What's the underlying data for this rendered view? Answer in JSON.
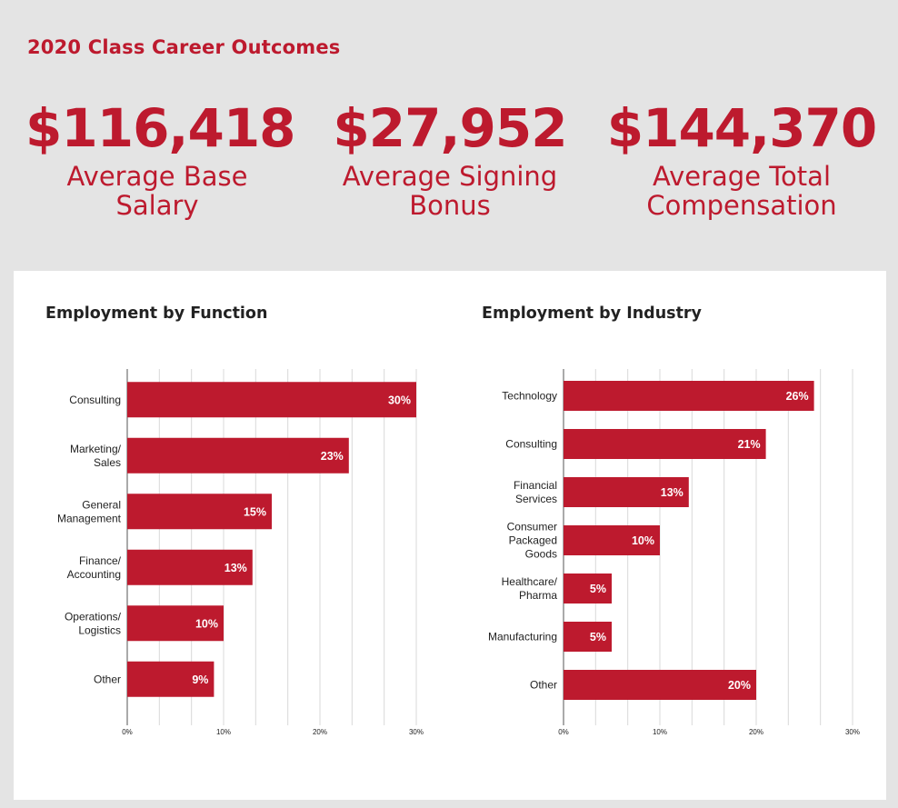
{
  "heading": "2020 Class Career Outcomes",
  "stats": [
    {
      "value": "$116,418",
      "label_line1": "Average Base",
      "label_line2": "Salary"
    },
    {
      "value": "$27,952",
      "label_line1": "Average Signing",
      "label_line2": "Bonus"
    },
    {
      "value": "$144,370",
      "label_line1": "Average Total",
      "label_line2": "Compensation"
    }
  ],
  "colors": {
    "accent": "#bd1a2e",
    "background": "#e4e4e4",
    "panel": "#ffffff",
    "grid": "#d9d9d9"
  },
  "chart_data": [
    {
      "type": "bar",
      "orientation": "horizontal",
      "title": "Employment by Function",
      "categories": [
        [
          "Consulting"
        ],
        [
          "Marketing/",
          "Sales"
        ],
        [
          "General",
          "Management"
        ],
        [
          "Finance/",
          "Accounting"
        ],
        [
          "Operations/",
          "Logistics"
        ],
        [
          "Other"
        ]
      ],
      "values": [
        30,
        23,
        15,
        13,
        10,
        9
      ],
      "value_labels": [
        "30%",
        "23%",
        "15%",
        "13%",
        "10%",
        "9%"
      ],
      "xlim": [
        0,
        30
      ],
      "xticks": [
        0,
        10,
        20,
        30
      ],
      "xtick_labels": [
        "0%",
        "10%",
        "20%",
        "30%"
      ],
      "grid": true
    },
    {
      "type": "bar",
      "orientation": "horizontal",
      "title": "Employment by Industry",
      "categories": [
        [
          "Technology"
        ],
        [
          "Consulting"
        ],
        [
          "Financial",
          "Services"
        ],
        [
          "Consumer",
          "Packaged",
          "Goods"
        ],
        [
          "Healthcare/",
          "Pharma"
        ],
        [
          "Manufacturing"
        ],
        [
          "Other"
        ]
      ],
      "values": [
        26,
        21,
        13,
        10,
        5,
        5,
        20
      ],
      "value_labels": [
        "26%",
        "21%",
        "13%",
        "10%",
        "5%",
        "5%",
        "20%"
      ],
      "xlim": [
        0,
        30
      ],
      "xticks": [
        0,
        10,
        20,
        30
      ],
      "xtick_labels": [
        "0%",
        "10%",
        "20%",
        "30%"
      ],
      "grid": true
    }
  ]
}
